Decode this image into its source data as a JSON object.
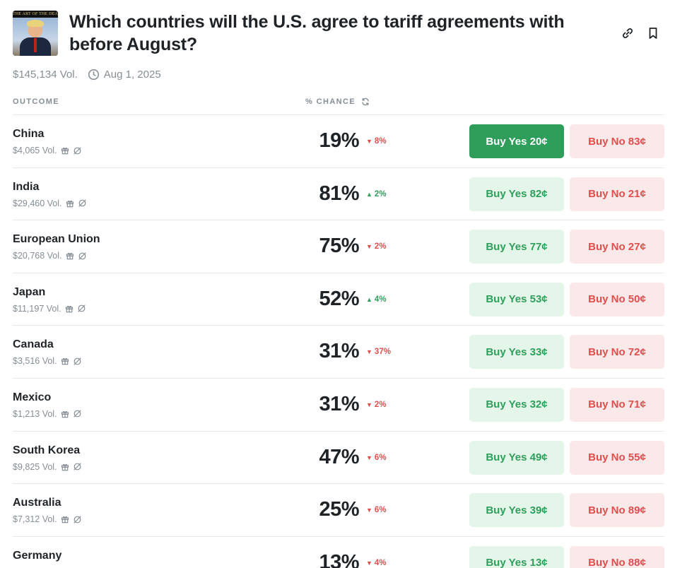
{
  "header": {
    "title": "Which countries will the U.S. agree to tariff agreements with before August?",
    "thumbnail_text": "THE ART OF THE DEAL"
  },
  "meta": {
    "volume": "$145,134 Vol.",
    "date": "Aug 1, 2025"
  },
  "columns": {
    "outcome": "OUTCOME",
    "chance": "% CHANCE"
  },
  "colors": {
    "green": "#2f9e5b",
    "red": "#e24c4c",
    "yes_bg": "#e3f6e9",
    "no_bg": "#fbe9e9"
  },
  "outcomes": [
    {
      "name": "China",
      "volume": "$4,065 Vol.",
      "chance": "19%",
      "delta": "8%",
      "direction": "down",
      "yes": "Buy Yes 20¢",
      "no": "Buy No 83¢"
    },
    {
      "name": "India",
      "volume": "$29,460 Vol.",
      "chance": "81%",
      "delta": "2%",
      "direction": "up",
      "yes": "Buy Yes 82¢",
      "no": "Buy No 21¢"
    },
    {
      "name": "European Union",
      "volume": "$20,768 Vol.",
      "chance": "75%",
      "delta": "2%",
      "direction": "down",
      "yes": "Buy Yes 77¢",
      "no": "Buy No 27¢"
    },
    {
      "name": "Japan",
      "volume": "$11,197 Vol.",
      "chance": "52%",
      "delta": "4%",
      "direction": "up",
      "yes": "Buy Yes 53¢",
      "no": "Buy No 50¢"
    },
    {
      "name": "Canada",
      "volume": "$3,516 Vol.",
      "chance": "31%",
      "delta": "37%",
      "direction": "down",
      "yes": "Buy Yes 33¢",
      "no": "Buy No 72¢"
    },
    {
      "name": "Mexico",
      "volume": "$1,213 Vol.",
      "chance": "31%",
      "delta": "2%",
      "direction": "down",
      "yes": "Buy Yes 32¢",
      "no": "Buy No 71¢"
    },
    {
      "name": "South Korea",
      "volume": "$9,825 Vol.",
      "chance": "47%",
      "delta": "6%",
      "direction": "down",
      "yes": "Buy Yes 49¢",
      "no": "Buy No 55¢"
    },
    {
      "name": "Australia",
      "volume": "$7,312 Vol.",
      "chance": "25%",
      "delta": "6%",
      "direction": "down",
      "yes": "Buy Yes 39¢",
      "no": "Buy No 89¢"
    },
    {
      "name": "Germany",
      "volume": "",
      "chance": "13%",
      "delta": "4%",
      "direction": "down",
      "yes": "Buy Yes 13¢",
      "no": "Buy No 88¢"
    }
  ]
}
